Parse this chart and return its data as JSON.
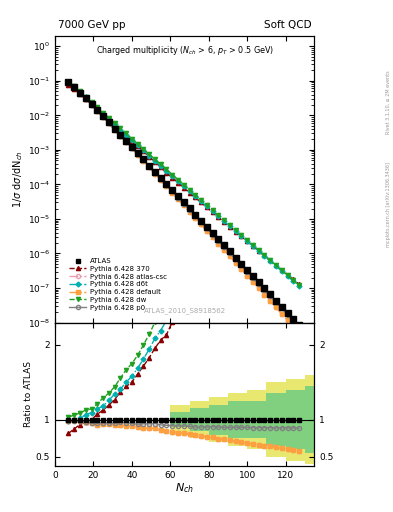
{
  "title_left": "7000 GeV pp",
  "title_right": "Soft QCD",
  "main_title": "Charged multiplicity ($N_{ch}$ > 6, $p_T$ > 0.5 GeV)",
  "xlabel": "$N_{ch}$",
  "ylabel_top": "1/σ dσ/dN$_{ch}$",
  "ylabel_bottom": "Ratio to ATLAS",
  "watermark": "ATLAS_2010_S8918562",
  "right_label_top": "Rivet 3.1.10, ≥ 2M events",
  "right_label_bottom": "mcplots.cern.ch [arXiv:1306.3436]",
  "ATLAS": {
    "x": [
      7,
      10,
      13,
      16,
      19,
      22,
      25,
      28,
      31,
      34,
      37,
      40,
      43,
      46,
      49,
      52,
      55,
      58,
      61,
      64,
      67,
      70,
      73,
      76,
      79,
      82,
      85,
      88,
      91,
      94,
      97,
      100,
      103,
      106,
      109,
      112,
      115,
      118,
      121,
      124,
      127
    ],
    "y": [
      0.092,
      0.065,
      0.045,
      0.031,
      0.021,
      0.014,
      0.0093,
      0.0062,
      0.0041,
      0.0027,
      0.0018,
      0.0012,
      0.0008,
      0.00053,
      0.00035,
      0.00023,
      0.000155,
      0.000103,
      6.85e-05,
      4.55e-05,
      3.02e-05,
      2.01e-05,
      1.34e-05,
      8.9e-06,
      5.9e-06,
      3.9e-06,
      2.6e-06,
      1.73e-06,
      1.15e-06,
      7.6e-07,
      5.05e-07,
      3.35e-07,
      2.23e-07,
      1.48e-07,
      9.83e-08,
      6.53e-08,
      4.34e-08,
      2.88e-08,
      1.91e-08,
      1.27e-08,
      8.44e-09
    ],
    "color": "#000000",
    "marker": "s",
    "label": "ATLAS"
  },
  "Pythia370": {
    "x": [
      7,
      10,
      13,
      16,
      19,
      22,
      25,
      28,
      31,
      34,
      37,
      40,
      43,
      46,
      49,
      52,
      55,
      58,
      61,
      64,
      67,
      70,
      73,
      76,
      79,
      82,
      85,
      88,
      91,
      94,
      97,
      100,
      103,
      106,
      109,
      112,
      115,
      118,
      121,
      124,
      127
    ],
    "y": [
      0.075,
      0.057,
      0.042,
      0.03,
      0.021,
      0.015,
      0.0105,
      0.0074,
      0.0052,
      0.0037,
      0.0026,
      0.0018,
      0.00129,
      0.00091,
      0.00064,
      0.00045,
      0.00032,
      0.00022,
      0.000158,
      0.000113,
      8.1e-05,
      5.8e-05,
      4.2e-05,
      3e-05,
      2.16e-05,
      1.56e-05,
      1.13e-05,
      8.2e-06,
      5.95e-06,
      4.32e-06,
      3.14e-06,
      2.28e-06,
      1.66e-06,
      1.21e-06,
      8.8e-07,
      6.4e-07,
      4.65e-07,
      3.38e-07,
      2.46e-07,
      1.79e-07,
      1.3e-07
    ],
    "color": "#8b0000",
    "marker": "^",
    "markersize": 3,
    "linestyle": "--",
    "linewidth": 1.0,
    "label": "Pythia 6.428 370"
  },
  "PythiaAtlasCsc": {
    "x": [
      7,
      10,
      13,
      16,
      19,
      22,
      25,
      28,
      31,
      34,
      37,
      40,
      43,
      46,
      49,
      52,
      55,
      58,
      61,
      64,
      67,
      70,
      73,
      76,
      79,
      82,
      85,
      88,
      91,
      94,
      97,
      100,
      103,
      106,
      109,
      112,
      115,
      118,
      121,
      124,
      127
    ],
    "y": [
      0.09,
      0.064,
      0.044,
      0.03,
      0.02,
      0.013,
      0.0087,
      0.0058,
      0.0038,
      0.0025,
      0.00165,
      0.0011,
      0.00072,
      0.00047,
      0.00031,
      0.000203,
      0.000133,
      8.72e-05,
      5.72e-05,
      3.75e-05,
      2.46e-05,
      1.61e-05,
      1.06e-05,
      6.93e-06,
      4.54e-06,
      2.97e-06,
      1.94e-06,
      1.27e-06,
      8.3e-07,
      5.4e-07,
      3.53e-07,
      2.3e-07,
      1.5e-07,
      9.8e-08,
      6.4e-08,
      4.2e-08,
      2.73e-08,
      1.78e-08,
      1.16e-08,
      7.56e-09,
      4.93e-09
    ],
    "color": "#e8a0b0",
    "marker": "o",
    "markersize": 3,
    "linestyle": "-.",
    "linewidth": 1.0,
    "label": "Pythia 6.428 atlas-csc"
  },
  "PythiaD6t": {
    "x": [
      7,
      10,
      13,
      16,
      19,
      22,
      25,
      28,
      31,
      34,
      37,
      40,
      43,
      46,
      49,
      52,
      55,
      58,
      61,
      64,
      67,
      70,
      73,
      76,
      79,
      82,
      85,
      88,
      91,
      94,
      97,
      100,
      103,
      106,
      109,
      112,
      115,
      118,
      121,
      124,
      127
    ],
    "y": [
      0.09,
      0.065,
      0.046,
      0.033,
      0.023,
      0.016,
      0.011,
      0.0078,
      0.0055,
      0.0038,
      0.0027,
      0.0019,
      0.00135,
      0.00096,
      0.00068,
      0.00048,
      0.00034,
      0.00024,
      0.000172,
      0.000123,
      8.79e-05,
      6.29e-05,
      4.5e-05,
      3.22e-05,
      2.31e-05,
      1.66e-05,
      1.19e-05,
      8.52e-06,
      6.11e-06,
      4.38e-06,
      3.14e-06,
      2.25e-06,
      1.61e-06,
      1.16e-06,
      8.31e-07,
      5.96e-07,
      4.27e-07,
      3.06e-07,
      2.19e-07,
      1.57e-07,
      1.13e-07
    ],
    "color": "#00b0b0",
    "marker": "D",
    "markersize": 2.5,
    "linestyle": "-.",
    "linewidth": 1.0,
    "label": "Pythia 6.428 d6t"
  },
  "PythiaDefault": {
    "x": [
      7,
      10,
      13,
      16,
      19,
      22,
      25,
      28,
      31,
      34,
      37,
      40,
      43,
      46,
      49,
      52,
      55,
      58,
      61,
      64,
      67,
      70,
      73,
      76,
      79,
      82,
      85,
      88,
      91,
      94,
      97,
      100,
      103,
      106,
      109,
      112,
      115,
      118,
      121,
      124,
      127
    ],
    "y": [
      0.09,
      0.065,
      0.044,
      0.03,
      0.02,
      0.013,
      0.0087,
      0.0058,
      0.0038,
      0.0025,
      0.00165,
      0.0011,
      0.00072,
      0.00047,
      0.00031,
      0.000203,
      0.000133,
      8.72e-05,
      5.72e-05,
      3.75e-05,
      2.46e-05,
      1.61e-05,
      1.06e-05,
      6.93e-06,
      4.54e-06,
      2.97e-06,
      1.94e-06,
      1.27e-06,
      8.3e-07,
      5.4e-07,
      3.53e-07,
      2.3e-07,
      1.5e-07,
      9.8e-08,
      6.4e-08,
      4.2e-08,
      2.73e-08,
      1.78e-08,
      1.16e-08,
      7.56e-09,
      4.93e-09
    ],
    "color": "#ffa040",
    "marker": "s",
    "markersize": 2.5,
    "linestyle": "-.",
    "linewidth": 1.0,
    "label": "Pythia 6.428 default"
  },
  "PythiaDw": {
    "x": [
      7,
      10,
      13,
      16,
      19,
      22,
      25,
      28,
      31,
      34,
      37,
      40,
      43,
      46,
      49,
      52,
      55,
      58,
      61,
      64,
      67,
      70,
      73,
      76,
      79,
      82,
      85,
      88,
      91,
      94,
      97,
      100,
      103,
      106,
      109,
      112,
      115,
      118,
      121,
      124,
      127
    ],
    "y": [
      0.095,
      0.069,
      0.049,
      0.035,
      0.024,
      0.017,
      0.012,
      0.0084,
      0.0059,
      0.0042,
      0.003,
      0.0021,
      0.00149,
      0.00106,
      0.00075,
      0.00053,
      0.00038,
      0.000271,
      0.000193,
      0.000138,
      9.85e-05,
      7.03e-05,
      5.02e-05,
      3.58e-05,
      2.56e-05,
      1.83e-05,
      1.31e-05,
      9.36e-06,
      6.69e-06,
      4.78e-06,
      3.42e-06,
      2.44e-06,
      1.75e-06,
      1.25e-06,
      8.94e-07,
      6.39e-07,
      4.57e-07,
      3.27e-07,
      2.34e-07,
      1.67e-07,
      1.2e-07
    ],
    "color": "#20a020",
    "marker": "v",
    "markersize": 3,
    "linestyle": "--",
    "linewidth": 1.0,
    "label": "Pythia 6.428 dw"
  },
  "PythiaP0": {
    "x": [
      7,
      10,
      13,
      16,
      19,
      22,
      25,
      28,
      31,
      34,
      37,
      40,
      43,
      46,
      49,
      52,
      55,
      58,
      61,
      64,
      67,
      70,
      73,
      76,
      79,
      82,
      85,
      88,
      91,
      94,
      97,
      100,
      103,
      106,
      109,
      112,
      115,
      118,
      121,
      124,
      127
    ],
    "y": [
      0.09,
      0.064,
      0.044,
      0.03,
      0.02,
      0.0133,
      0.0089,
      0.0059,
      0.0039,
      0.0026,
      0.00172,
      0.00114,
      0.00075,
      0.0005,
      0.00033,
      0.000218,
      0.000144,
      9.52e-05,
      6.3e-05,
      4.17e-05,
      2.76e-05,
      1.83e-05,
      1.21e-05,
      8.03e-06,
      5.32e-06,
      3.53e-06,
      2.34e-06,
      1.55e-06,
      1.03e-06,
      6.83e-07,
      4.53e-07,
      3e-07,
      1.99e-07,
      1.32e-07,
      8.77e-08,
      5.82e-08,
      3.86e-08,
      2.56e-08,
      1.7e-08,
      1.13e-08,
      7.48e-09
    ],
    "color": "#808080",
    "marker": "o",
    "markersize": 3,
    "linestyle": "-",
    "linewidth": 1.0,
    "label": "Pythia 6.428 p0"
  },
  "band_edges": [
    0,
    6,
    12,
    18,
    24,
    30,
    36,
    42,
    48,
    54,
    60,
    70,
    80,
    90,
    100,
    110,
    120,
    130,
    140
  ],
  "band_inner_lo": [
    1,
    1,
    1,
    1,
    1,
    1,
    1,
    1,
    1,
    1,
    0.9,
    0.85,
    0.8,
    0.75,
    0.75,
    0.65,
    0.6,
    0.55,
    0.55
  ],
  "band_inner_hi": [
    1,
    1,
    1,
    1,
    1,
    1,
    1,
    1,
    1,
    1,
    1.1,
    1.15,
    1.2,
    1.25,
    1.25,
    1.35,
    1.4,
    1.45,
    1.45
  ],
  "band_outer_lo": [
    1,
    1,
    1,
    1,
    1,
    1,
    1,
    1,
    1,
    1,
    0.8,
    0.75,
    0.7,
    0.65,
    0.6,
    0.5,
    0.45,
    0.4,
    0.4
  ],
  "band_outer_hi": [
    1,
    1,
    1,
    1,
    1,
    1,
    1,
    1,
    1,
    1,
    1.2,
    1.25,
    1.3,
    1.35,
    1.4,
    1.5,
    1.55,
    1.6,
    1.6
  ],
  "error_band_inner_color": "#80d080",
  "error_band_outer_color": "#e8e870"
}
